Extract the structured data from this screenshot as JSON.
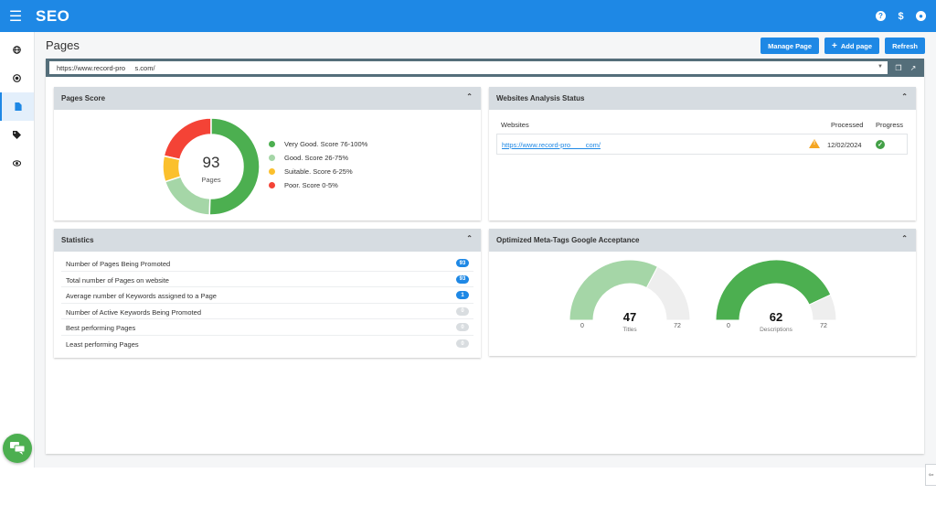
{
  "app": {
    "brand": "SEO"
  },
  "header_icons": [
    "help-icon",
    "dollar-icon",
    "user-account-icon"
  ],
  "sidebar": {
    "items": [
      {
        "icon": "globe-icon",
        "active": false
      },
      {
        "icon": "target-icon",
        "active": false
      },
      {
        "icon": "pages-icon",
        "active": true
      },
      {
        "icon": "tag-icon",
        "active": false
      },
      {
        "icon": "eye-icon",
        "active": false
      }
    ]
  },
  "page": {
    "title": "Pages"
  },
  "toolbar": {
    "manage_label": "Manage Page",
    "add_label": "Add page",
    "refresh_label": "Refresh"
  },
  "url_select": {
    "value": "https://www.record-pro     s.com/"
  },
  "pages_score": {
    "title": "Pages Score",
    "total": "93",
    "total_label": "Pages",
    "segments": [
      {
        "label": "Very Good. Score 76-100%",
        "value": 47,
        "color": "#4caf50"
      },
      {
        "label": "Good. Score 26-75%",
        "value": 18,
        "color": "#a5d6a7"
      },
      {
        "label": "Suitable. Score 6-25%",
        "value": 8,
        "color": "#fbc02d"
      },
      {
        "label": "Poor. Score 0-5%",
        "value": 20,
        "color": "#f44336"
      }
    ]
  },
  "analysis": {
    "title": "Websites Analysis Status",
    "col_websites": "Websites",
    "col_processed": "Processed",
    "col_progress": "Progress",
    "row": {
      "website": "https://www.record-pro        com/",
      "processed": "12/02/2024"
    }
  },
  "statistics": {
    "title": "Statistics",
    "rows": [
      {
        "label": "Number of Pages Being Promoted",
        "value": "93",
        "tone": "blue"
      },
      {
        "label": "Total number of Pages on website",
        "value": "93",
        "tone": "blue"
      },
      {
        "label": "Average number of Keywords assigned to a Page",
        "value": "1",
        "tone": "blue"
      },
      {
        "label": "Number of Active Keywords Being Promoted",
        "value": "0",
        "tone": "grey"
      },
      {
        "label": "Best performing Pages",
        "value": "0",
        "tone": "grey"
      },
      {
        "label": "Least performing Pages",
        "value": "0",
        "tone": "grey"
      }
    ]
  },
  "meta_tags": {
    "title": "Optimized Meta-Tags Google Acceptance",
    "gauges": [
      {
        "value": "47",
        "max": "72",
        "min": "0",
        "label": "Titles",
        "fill_fraction": 0.6528,
        "color": "#a5d6a7"
      },
      {
        "value": "62",
        "max": "72",
        "min": "0",
        "label": "Descriptions",
        "fill_fraction": 0.8611,
        "color": "#4caf50"
      }
    ]
  }
}
